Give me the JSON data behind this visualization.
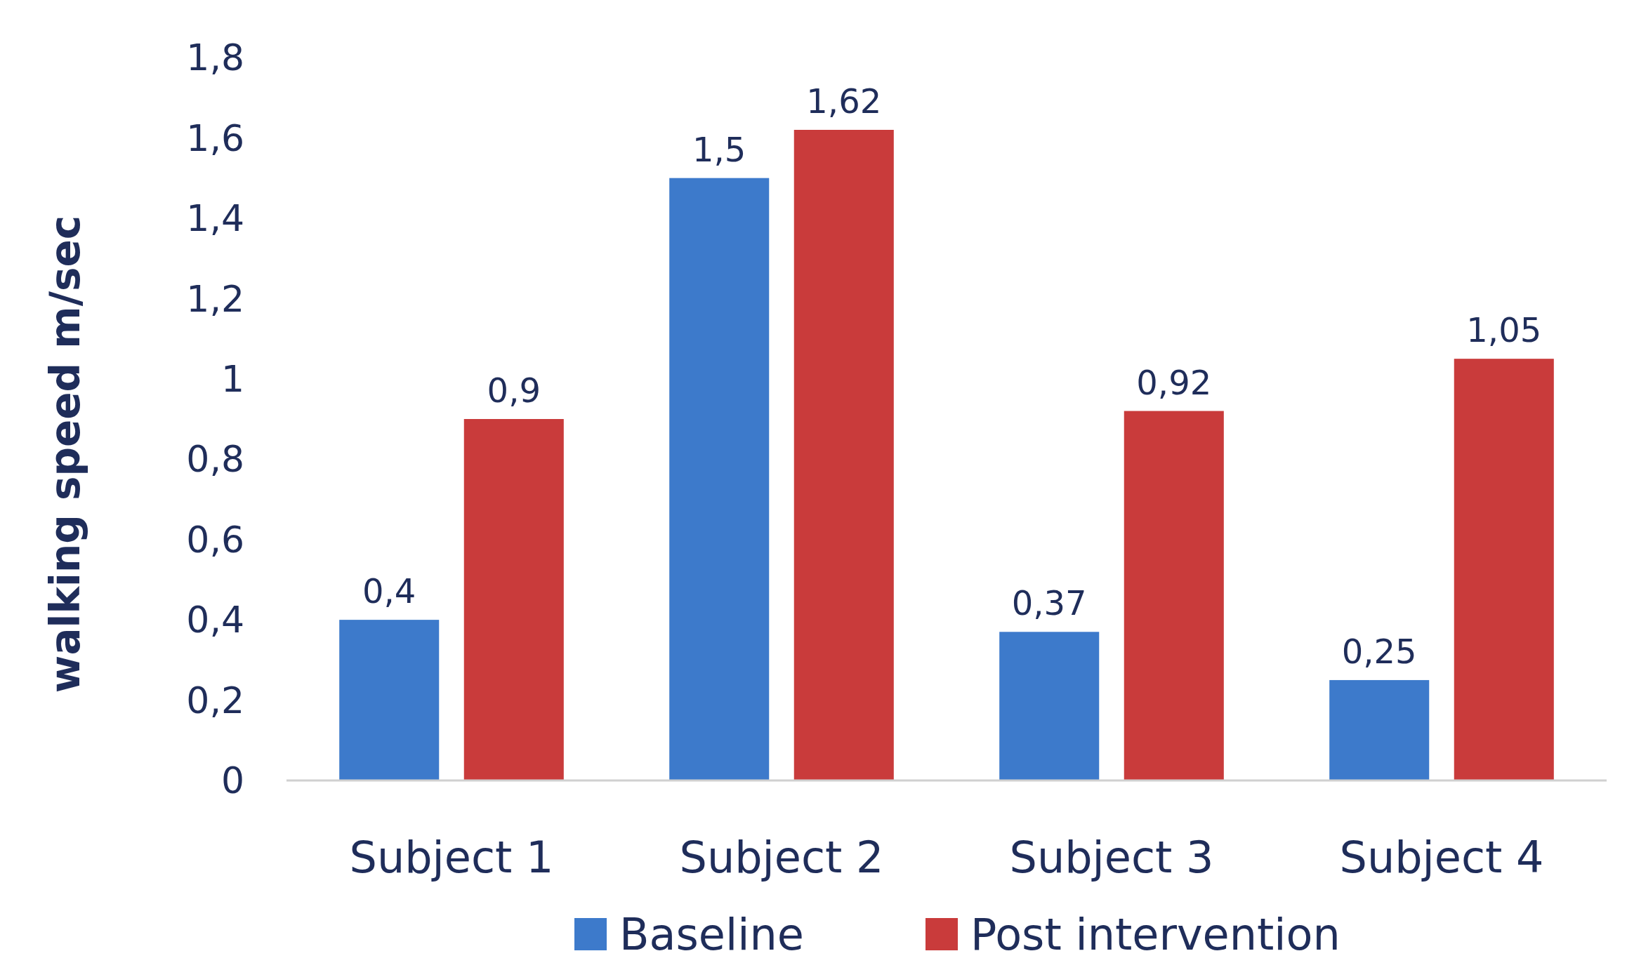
{
  "chart_data": {
    "type": "bar",
    "ylabel": "walking speed m/sec",
    "categories": [
      "Subject 1",
      "Subject 2",
      "Subject 3",
      "Subject 4"
    ],
    "series": [
      {
        "name": "Baseline",
        "color": "#3d7acb",
        "values": [
          0.4,
          1.5,
          0.37,
          0.25
        ],
        "value_labels": [
          "0,4",
          "1,5",
          "0,37",
          "0,25"
        ]
      },
      {
        "name": "Post intervention",
        "color": "#c93b3b",
        "values": [
          0.9,
          1.62,
          0.92,
          1.05
        ],
        "value_labels": [
          "0,9",
          "1,62",
          "0,92",
          "1,05"
        ]
      }
    ],
    "ylim": [
      0,
      1.8
    ],
    "yticks": [
      0,
      {
        "value": 0.2,
        "label": "0,2"
      },
      {
        "value": 0.4,
        "label": "0,4"
      },
      {
        "value": 0.6,
        "label": "0,6"
      },
      {
        "value": 0.8,
        "label": "0,8"
      },
      1,
      {
        "value": 1.2,
        "label": "1,2"
      },
      {
        "value": 1.4,
        "label": "1,4"
      },
      {
        "value": 1.6,
        "label": "1,6"
      },
      {
        "value": 1.8,
        "label": "1,8"
      }
    ],
    "grid": false,
    "legend": "bottom"
  }
}
